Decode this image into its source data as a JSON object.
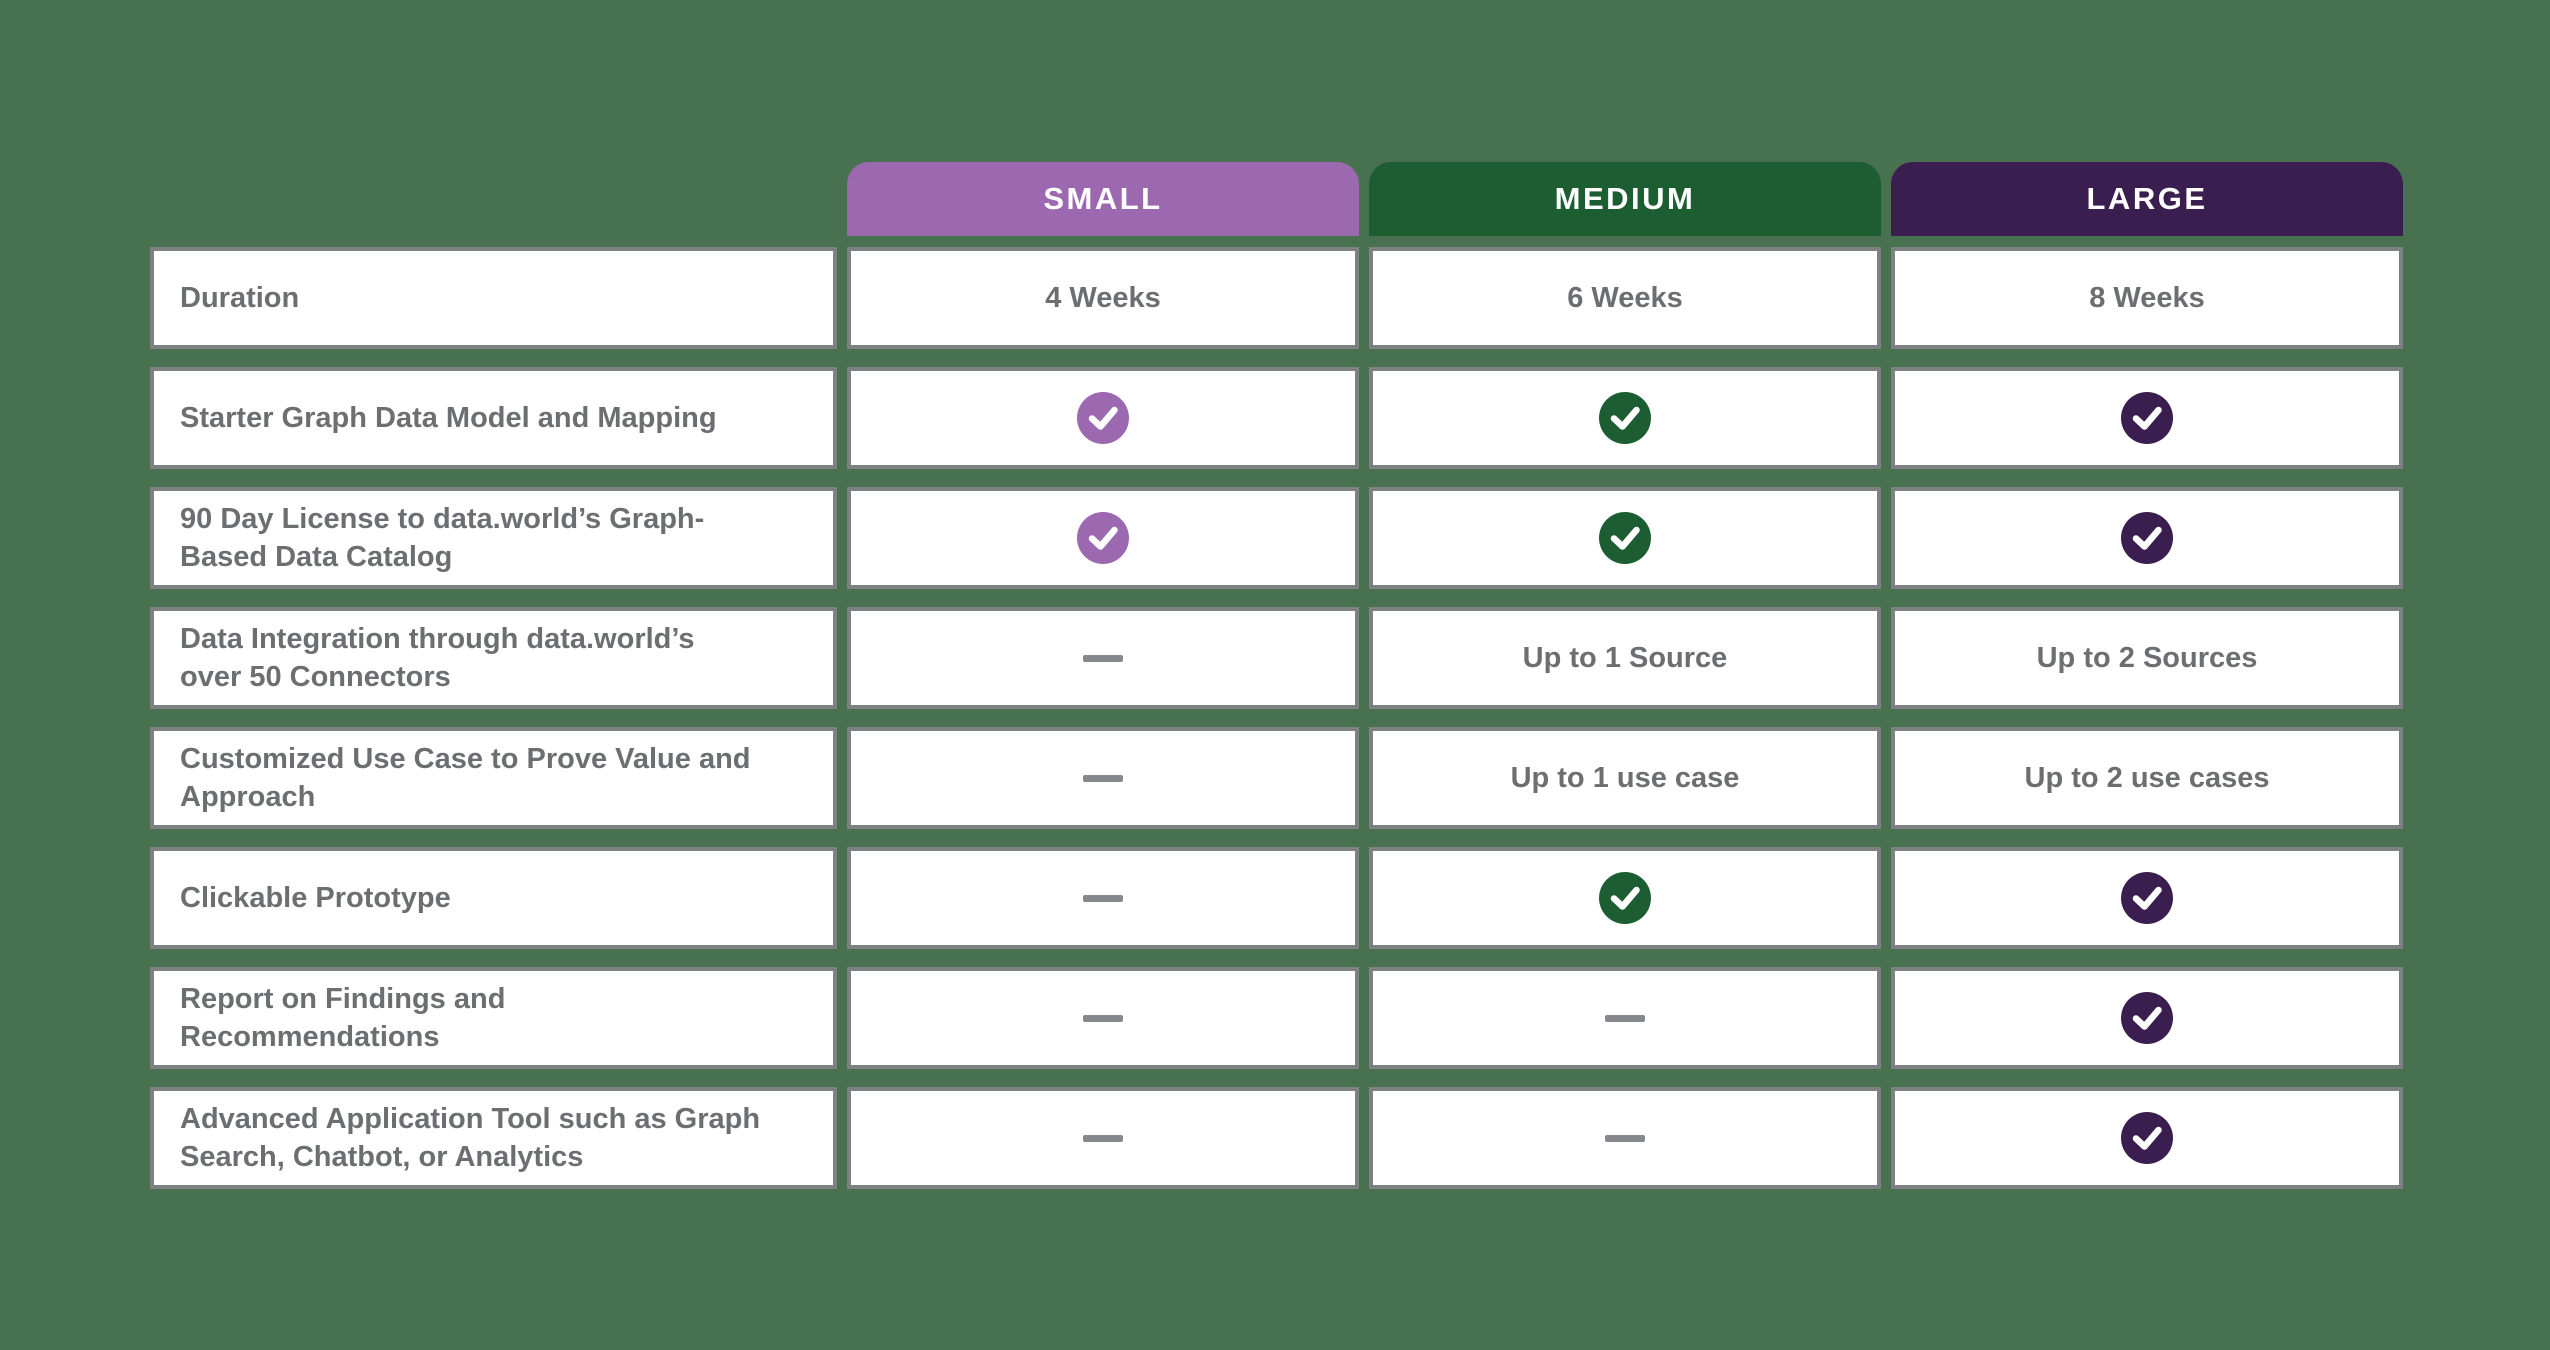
{
  "page": {
    "background_color": "#47714F"
  },
  "pricing_table": {
    "tiers": [
      {
        "id": "small",
        "label": "SMALL",
        "color": "#9C69B1"
      },
      {
        "id": "medium",
        "label": "MEDIUM",
        "color": "#1C5D32"
      },
      {
        "id": "large",
        "label": "LARGE",
        "color": "#3A1E4F"
      }
    ],
    "rows": [
      {
        "feature": "Duration",
        "cells": [
          {
            "type": "text",
            "value": "4 Weeks"
          },
          {
            "type": "text",
            "value": "6 Weeks"
          },
          {
            "type": "text",
            "value": "8 Weeks"
          }
        ]
      },
      {
        "feature": "Starter Graph Data Model and Mapping",
        "cells": [
          {
            "type": "check"
          },
          {
            "type": "check"
          },
          {
            "type": "check"
          }
        ]
      },
      {
        "feature": "90 Day License to data.world’s Graph-\nBased Data Catalog",
        "cells": [
          {
            "type": "check"
          },
          {
            "type": "check"
          },
          {
            "type": "check"
          }
        ]
      },
      {
        "feature": "Data Integration through data.world’s\nover 50 Connectors",
        "cells": [
          {
            "type": "dash",
            "value": "—"
          },
          {
            "type": "text",
            "value": "Up to 1 Source"
          },
          {
            "type": "text",
            "value": "Up to 2 Sources"
          }
        ]
      },
      {
        "feature": "Customized Use Case to Prove Value and\nApproach",
        "cells": [
          {
            "type": "dash",
            "value": "—"
          },
          {
            "type": "text",
            "value": "Up to 1 use case"
          },
          {
            "type": "text",
            "value": "Up to 2 use cases"
          }
        ]
      },
      {
        "feature": "Clickable Prototype",
        "cells": [
          {
            "type": "dash",
            "value": "—"
          },
          {
            "type": "check"
          },
          {
            "type": "check"
          }
        ]
      },
      {
        "feature": "Report on Findings and\nRecommendations",
        "cells": [
          {
            "type": "dash",
            "value": "—"
          },
          {
            "type": "dash",
            "value": "—"
          },
          {
            "type": "check"
          }
        ]
      },
      {
        "feature": "Advanced Application Tool such as Graph\nSearch, Chatbot, or Analytics",
        "cells": [
          {
            "type": "dash",
            "value": "—"
          },
          {
            "type": "dash",
            "value": "—"
          },
          {
            "type": "check"
          }
        ]
      }
    ],
    "colors": {
      "cell_background": "#FFFFFF",
      "cell_border": "#7F8083",
      "body_text": "#6D6E71",
      "header_text": "#FFFFFF",
      "dash": "#87888B"
    }
  }
}
